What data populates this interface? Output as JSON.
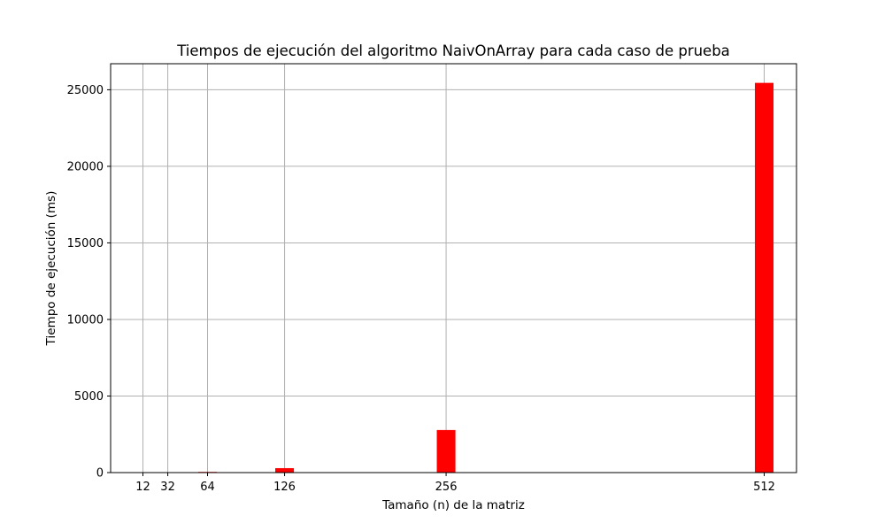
{
  "chart_data": {
    "type": "bar",
    "title": "Tiempos de ejecución del algoritmo NaivOnArray para cada caso de prueba",
    "xlabel": "Tamaño (n) de la matriz",
    "ylabel": "Tiempo de ejecución (ms)",
    "x_scale": "linear",
    "xlim": [
      -14,
      538
    ],
    "ylim": [
      0,
      26700
    ],
    "x": [
      12,
      32,
      64,
      126,
      256,
      512
    ],
    "x_tick_labels": [
      "12",
      "32",
      "64",
      "126",
      "256",
      "512"
    ],
    "values": [
      1,
      4,
      45,
      290,
      2780,
      25450
    ],
    "bar_width": 15,
    "y_ticks": [
      0,
      5000,
      10000,
      15000,
      20000,
      25000
    ],
    "y_tick_labels": [
      "0",
      "5000",
      "10000",
      "15000",
      "20000",
      "25000"
    ],
    "grid": true,
    "bar_color": "#ff0000",
    "grid_color": "#b0b0b0"
  }
}
